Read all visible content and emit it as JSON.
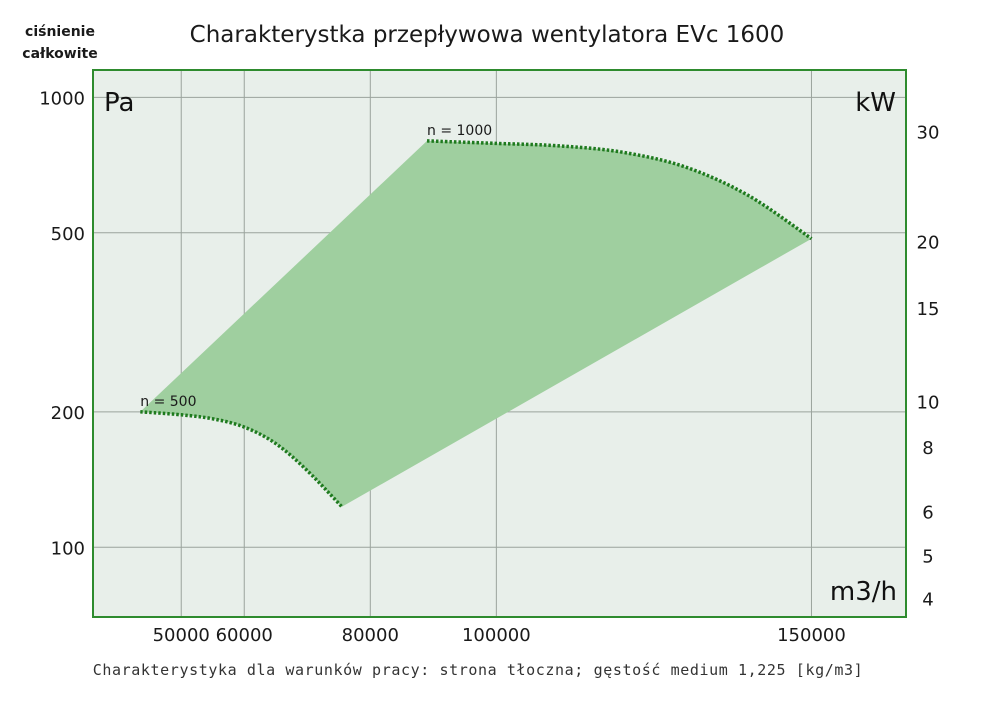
{
  "chart_data": {
    "type": "area",
    "title": "Charakterystka przepływowa wentylatora EVc 1600",
    "y_heading_line1": "ciśnienie",
    "y_heading_line2": "całkowite",
    "footnote": "Charakterystyka dla warunków pracy: strona tłoczna; gęstość medium 1,225 [kg/m3]",
    "x_unit": "m3/h",
    "y_unit_left": "Pa",
    "y_unit_right": "kW",
    "x_scale": "linear",
    "y_scale": "log",
    "xlim": [
      36000,
      165000
    ],
    "ylim_left": [
      70,
      1150
    ],
    "x_ticks": [
      {
        "value": 50000,
        "label": "50000"
      },
      {
        "value": 60000,
        "label": "60000"
      },
      {
        "value": 80000,
        "label": "80000"
      },
      {
        "value": 100000,
        "label": "100000"
      },
      {
        "value": 150000,
        "label": "150000"
      }
    ],
    "y_ticks_left": [
      {
        "value": 100,
        "label": "100"
      },
      {
        "value": 200,
        "label": "200"
      },
      {
        "value": 500,
        "label": "500"
      },
      {
        "value": 1000,
        "label": "1000"
      }
    ],
    "y_ticks_right": [
      {
        "at_pressure": 840,
        "label": "30"
      },
      {
        "at_pressure": 478,
        "label": "20"
      },
      {
        "at_pressure": 340,
        "label": "15"
      },
      {
        "at_pressure": 211,
        "label": "10"
      },
      {
        "at_pressure": 167,
        "label": "8"
      },
      {
        "at_pressure": 120,
        "label": "6"
      },
      {
        "at_pressure": 96,
        "label": "5"
      },
      {
        "at_pressure": 77,
        "label": "4"
      }
    ],
    "grid": true,
    "colors": {
      "plot_background": "#e8efea",
      "frame": "#2e8b2e",
      "area_fill": "#9fcf9f",
      "curve": "#1e7a1e",
      "grid": "#9aa39c"
    },
    "series": [
      {
        "name": "n = 500",
        "x": [
          43500,
          50000,
          55000,
          60000,
          65000,
          70000,
          75500
        ],
        "y": [
          200,
          197,
          193,
          185,
          170,
          148,
          123
        ]
      },
      {
        "name": "n = 1000",
        "x": [
          89000,
          100000,
          110000,
          120000,
          130000,
          140000,
          150000
        ],
        "y": [
          800,
          790,
          780,
          755,
          700,
          605,
          485
        ]
      }
    ]
  }
}
